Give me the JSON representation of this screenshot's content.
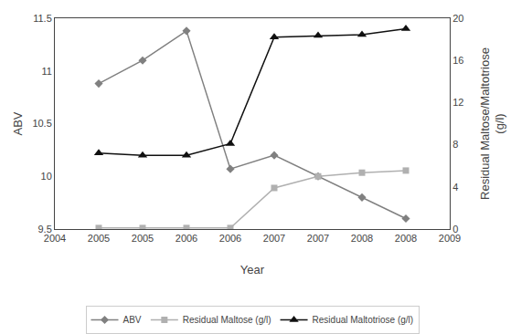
{
  "chart_data": {
    "type": "line",
    "categories": [
      "2004",
      "2005",
      "2005",
      "2006",
      "2006",
      "2007",
      "2007",
      "2008",
      "2008",
      "2009"
    ],
    "xlabel": "Year",
    "ylabel": "ABV",
    "y2label": "Residual Maltose/Maltotriose\n(g/l)",
    "ylim": [
      9.5,
      11.5
    ],
    "yticks": [
      9.5,
      10.0,
      10.5,
      11.0,
      11.5
    ],
    "y2lim": [
      0,
      20
    ],
    "y2ticks": [
      0,
      4,
      8,
      12,
      16,
      20
    ],
    "grid": false,
    "legend": "bottom",
    "series": [
      {
        "name": "ABV",
        "color": "#808080",
        "marker": "diamond",
        "values": [
          null,
          10.88,
          11.1,
          11.38,
          10.07,
          10.2,
          10.0,
          9.8,
          9.6,
          null
        ]
      },
      {
        "name": "Residual Maltose (g/l)",
        "color": "#b0b0b0",
        "marker": "square",
        "axis": "y2",
        "values": [
          null,
          0.1,
          0.1,
          0.1,
          0.1,
          3.9,
          5.0,
          5.35,
          5.55,
          null
        ]
      },
      {
        "name": "Residual Maltotriose (g/l)",
        "color": "#101010",
        "marker": "triangle-up",
        "axis": "y2",
        "values": [
          null,
          7.2,
          7.0,
          7.0,
          8.1,
          18.2,
          18.35,
          18.45,
          19.0,
          null
        ]
      }
    ]
  }
}
